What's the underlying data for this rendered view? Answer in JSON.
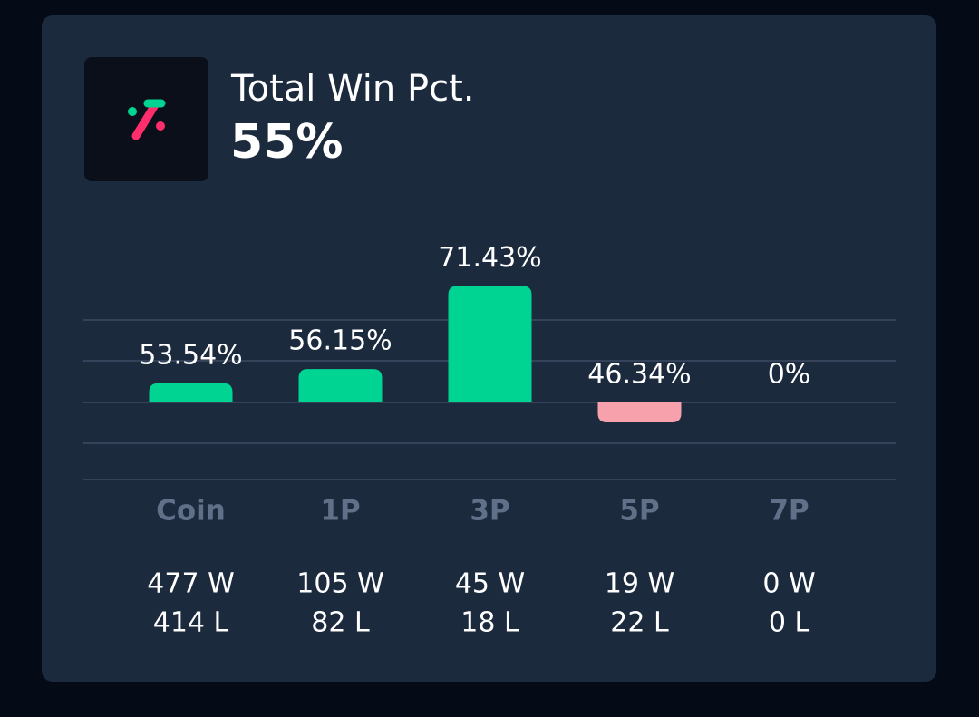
{
  "chart_data": {
    "type": "bar",
    "title": "Total Win Pct.",
    "subtitle": "55%",
    "categories": [
      "Coin",
      "1P",
      "3P",
      "5P",
      "7P"
    ],
    "values": [
      53.54,
      56.15,
      71.43,
      46.34,
      0
    ],
    "value_labels": [
      "53.54%",
      "56.15%",
      "71.43%",
      "46.34%",
      "0%"
    ],
    "wins": [
      477,
      105,
      45,
      19,
      0
    ],
    "wins_labels": [
      "477 W",
      "105 W",
      "45 W",
      "19 W",
      "0 W"
    ],
    "losses": [
      414,
      82,
      18,
      22,
      0
    ],
    "losses_labels": [
      "414 L",
      "82 L",
      "18 L",
      "22 L",
      "0 L"
    ],
    "ylim": [
      28,
      72
    ],
    "positive_color": "#00d492",
    "negative_color": "#f7a1ad"
  }
}
